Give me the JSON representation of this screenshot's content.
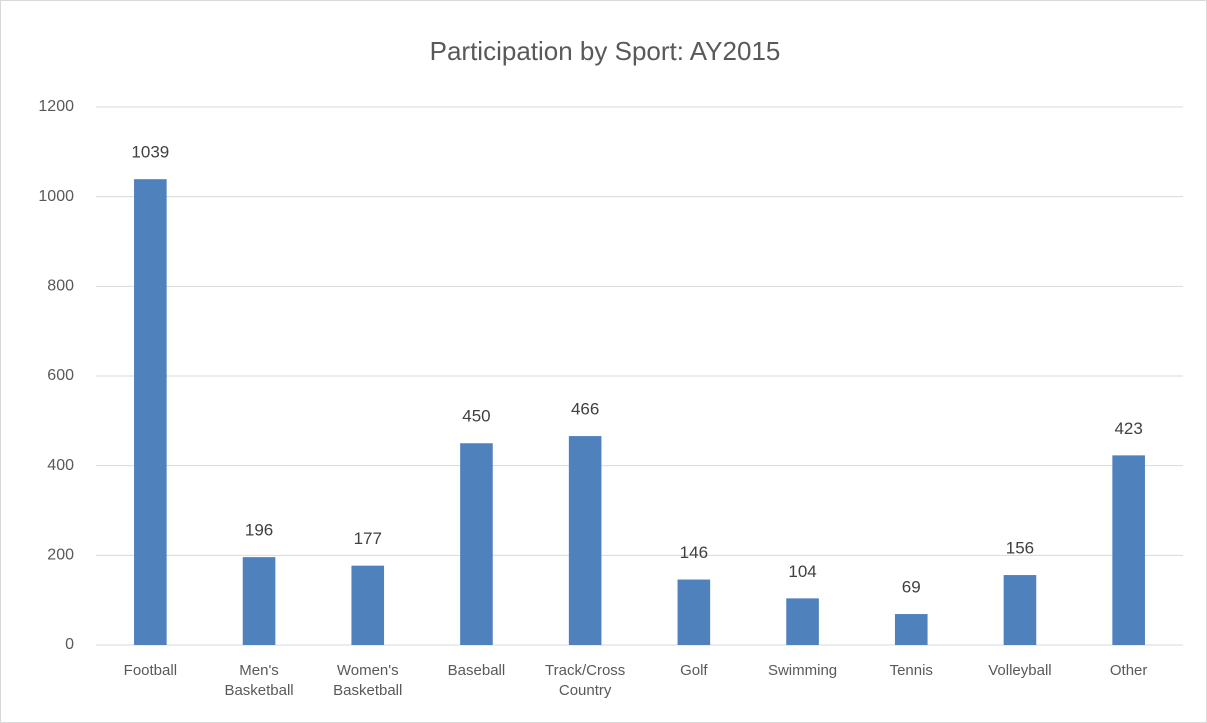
{
  "chart_data": {
    "type": "bar",
    "title": "Participation by Sport: AY2015",
    "categories": [
      "Football",
      "Men's Basketball",
      "Women's Basketball",
      "Baseball",
      "Track/Cross Country",
      "Golf",
      "Swimming",
      "Tennis",
      "Volleyball",
      "Other"
    ],
    "values": [
      1039,
      196,
      177,
      450,
      466,
      146,
      104,
      69,
      156,
      423
    ],
    "color": "#4f81bd",
    "ylim": [
      0,
      1200
    ],
    "yticks": [
      0,
      200,
      400,
      600,
      800,
      1000,
      1200
    ],
    "grid": true
  }
}
